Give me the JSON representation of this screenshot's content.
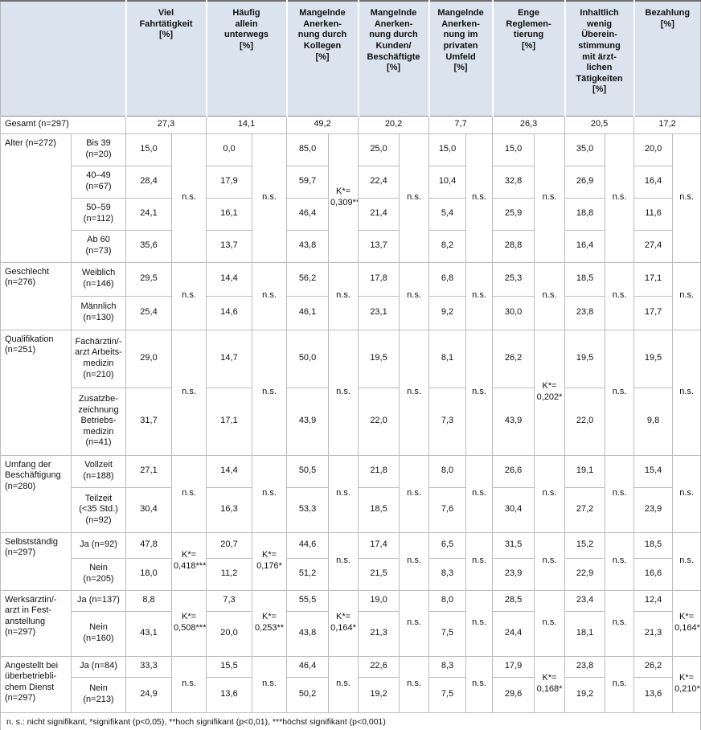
{
  "colors": {
    "header_bg": "#dbe3ee"
  },
  "table": {
    "columns": [
      {
        "label": "Viel\nFahrtätigkeit\n[%]"
      },
      {
        "label": "Häufig\nallein\nunterwegs\n[%]"
      },
      {
        "label": "Mangelnde\nAnerken-\nnung durch\nKollegen\n[%]"
      },
      {
        "label": "Mangelnde\nAnerken-\nnung durch\nKunden/\nBeschäftigte\n[%]"
      },
      {
        "label": "Mangelnde\nAnerken-\nnung im\nprivaten\nUmfeld\n[%]"
      },
      {
        "label": "Enge\nReglemen-\ntierung\n[%]"
      },
      {
        "label": "Inhaltlich\nwenig\nÜberein-\nstimmung\nmit ärzt-\nlichen\nTätigkeiten\n[%]"
      },
      {
        "label": "Bezahlung\n[%]"
      }
    ],
    "gesamt": {
      "label": "Gesamt (n=297)",
      "values": [
        "27,3",
        "14,1",
        "49,2",
        "20,2",
        "7,7",
        "26,3",
        "20,5",
        "17,2"
      ]
    },
    "groups": [
      {
        "label": "Alter (n=272)",
        "rows": [
          {
            "label": "Bis 39\n(n=20)",
            "values": [
              "15,0",
              "0,0",
              "85,0",
              "25,0",
              "15,0",
              "15,0",
              "35,0",
              "20,0"
            ]
          },
          {
            "label": "40–49\n(n=67)",
            "values": [
              "28,4",
              "17,9",
              "59,7",
              "22,4",
              "10,4",
              "32,8",
              "26,9",
              "16,4"
            ]
          },
          {
            "label": "50–59\n(n=112)",
            "values": [
              "24,1",
              "16,1",
              "46,4",
              "21,4",
              "5,4",
              "25,9",
              "18,8",
              "11,6"
            ]
          },
          {
            "label": "Ab 60\n(n=73)",
            "values": [
              "35,6",
              "13,7",
              "43,8",
              "13,7",
              "8,2",
              "28,8",
              "16,4",
              "27,4"
            ]
          }
        ],
        "sigs": [
          "n.s.",
          "n.s.",
          "K*=\n0,309**",
          "n.s.",
          "n.s.",
          "n.s.",
          "n.s.",
          "n.s."
        ]
      },
      {
        "label": "Geschlecht\n(n=276)",
        "rows": [
          {
            "label": "Weiblich\n(n=146)",
            "values": [
              "29,5",
              "14,4",
              "56,2",
              "17,8",
              "6,8",
              "25,3",
              "18,5",
              "17,1"
            ]
          },
          {
            "label": "Männlich\n(n=130)",
            "values": [
              "25,4",
              "14,6",
              "46,1",
              "23,1",
              "9,2",
              "30,0",
              "23,8",
              "17,7"
            ]
          }
        ],
        "sigs": [
          "n.s.",
          "n.s.",
          "n.s.",
          "n.s.",
          "n.s.",
          "n.s.",
          "n.s.",
          "n.s."
        ]
      },
      {
        "label": "Qualifikation\n(n=251)",
        "rows": [
          {
            "label": "Fachärztin/-\narzt Arbeits-\nmedizin\n(n=210)",
            "values": [
              "29,0",
              "14,7",
              "50,0",
              "19,5",
              "8,1",
              "26,2",
              "19,5",
              "19,5"
            ]
          },
          {
            "label": "Zusatzbe-\nzeichnung\nBetriebs-\nmedizin\n(n=41)",
            "values": [
              "31,7",
              "17,1",
              "43,9",
              "22,0",
              "7,3",
              "43,9",
              "22,0",
              "9,8"
            ]
          }
        ],
        "sigs": [
          "n.s.",
          "n.s.",
          "n.s.",
          "n.s.",
          "n.s.",
          "K*=\n0,202*",
          "n.s.",
          "n.s."
        ]
      },
      {
        "label": "Umfang der\nBeschäftigung\n(n=280)",
        "rows": [
          {
            "label": "Vollzeit\n(n=188)",
            "values": [
              "27,1",
              "14,4",
              "50,5",
              "21,8",
              "8,0",
              "26,6",
              "19,1",
              "15,4"
            ]
          },
          {
            "label": "Teilzeit\n(<35 Std.)\n(n=92)",
            "values": [
              "30,4",
              "16,3",
              "53,3",
              "18,5",
              "7,6",
              "30,4",
              "27,2",
              "23,9"
            ]
          }
        ],
        "sigs": [
          "n.s.",
          "n.s.",
          "n.s.",
          "n.s.",
          "n.s.",
          "n.s.",
          "n.s.",
          "n.s."
        ]
      },
      {
        "label": "Selbstständig\n(n=297)",
        "rows": [
          {
            "label": "Ja (n=92)",
            "values": [
              "47,8",
              "20,7",
              "44,6",
              "17,4",
              "6,5",
              "31,5",
              "15,2",
              "18,5"
            ]
          },
          {
            "label": "Nein\n(n=205)",
            "values": [
              "18,0",
              "11,2",
              "51,2",
              "21,5",
              "8,3",
              "23,9",
              "22,9",
              "16,6"
            ]
          }
        ],
        "sigs": [
          "K*=\n0,418***",
          "K*=\n0,176*",
          "n.s.",
          "n.s.",
          "n.s.",
          "n.s.",
          "n.s.",
          "n.s."
        ]
      },
      {
        "label": "Werksärztin/-\narzt in Fest-\nanstellung\n(n=297)",
        "rows": [
          {
            "label": "Ja (n=137)",
            "values": [
              "8,8",
              "7,3",
              "55,5",
              "19,0",
              "8,0",
              "28,5",
              "23,4",
              "12,4"
            ]
          },
          {
            "label": "Nein\n(n=160)",
            "values": [
              "43,1",
              "20,0",
              "43,8",
              "21,3",
              "7,5",
              "24,4",
              "18,1",
              "21,3"
            ]
          }
        ],
        "sigs": [
          "K*=\n0,508***",
          "K*=\n0,253**",
          "K*=\n0,164*",
          "n.s.",
          "n.s.",
          "n.s.",
          "n.s.",
          "K*=\n0,164*"
        ]
      },
      {
        "label": "Angestellt bei\nüberbetriebli-\nchem Dienst\n(n=297)",
        "rows": [
          {
            "label": "Ja (n=84)",
            "values": [
              "33,3",
              "15,5",
              "46,4",
              "22,6",
              "8,3",
              "17,9",
              "23,8",
              "26,2"
            ]
          },
          {
            "label": "Nein\n(n=213)",
            "values": [
              "24,9",
              "13,6",
              "50,2",
              "19,2",
              "7,5",
              "29,6",
              "19,2",
              "13,6"
            ]
          }
        ],
        "sigs": [
          "n.s.",
          "n.s.",
          "n.s.",
          "n.s.",
          "n.s.",
          "K*=\n0,168*",
          "n.s.",
          "K*=\n0,210*"
        ]
      }
    ],
    "footnote": "n. s.: nicht signifikant, *signifikant (p<0,05), **hoch signifikant (p<0,01), ***höchst signifikant (p<0,001)"
  }
}
